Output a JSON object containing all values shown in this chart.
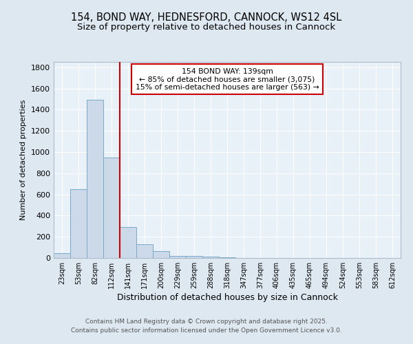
{
  "title_line1": "154, BOND WAY, HEDNESFORD, CANNOCK, WS12 4SL",
  "title_line2": "Size of property relative to detached houses in Cannock",
  "xlabel": "Distribution of detached houses by size in Cannock",
  "ylabel": "Number of detached properties",
  "footer_line1": "Contains HM Land Registry data © Crown copyright and database right 2025.",
  "footer_line2": "Contains public sector information licensed under the Open Government Licence v3.0.",
  "bar_labels": [
    "23sqm",
    "53sqm",
    "82sqm",
    "112sqm",
    "141sqm",
    "171sqm",
    "200sqm",
    "229sqm",
    "259sqm",
    "288sqm",
    "318sqm",
    "347sqm",
    "377sqm",
    "406sqm",
    "435sqm",
    "465sqm",
    "494sqm",
    "524sqm",
    "553sqm",
    "583sqm",
    "612sqm"
  ],
  "bar_values": [
    45,
    650,
    1495,
    950,
    295,
    130,
    65,
    22,
    18,
    10,
    5,
    3,
    0,
    0,
    0,
    0,
    0,
    0,
    0,
    0,
    0
  ],
  "bar_color": "#ccd9e8",
  "bar_edgecolor": "#7aaac8",
  "vline_color": "#cc0000",
  "annotation_title": "154 BOND WAY: 139sqm",
  "annotation_line1": "← 85% of detached houses are smaller (3,075)",
  "annotation_line2": "15% of semi-detached houses are larger (563) →",
  "annotation_box_color": "#cc0000",
  "ylim": [
    0,
    1850
  ],
  "yticks": [
    0,
    200,
    400,
    600,
    800,
    1000,
    1200,
    1400,
    1600,
    1800
  ],
  "bg_color": "#dde8f0",
  "plot_bg_color": "#e8f0f8",
  "grid_color": "#ffffff",
  "title_fontsize": 10.5,
  "subtitle_fontsize": 9.5
}
